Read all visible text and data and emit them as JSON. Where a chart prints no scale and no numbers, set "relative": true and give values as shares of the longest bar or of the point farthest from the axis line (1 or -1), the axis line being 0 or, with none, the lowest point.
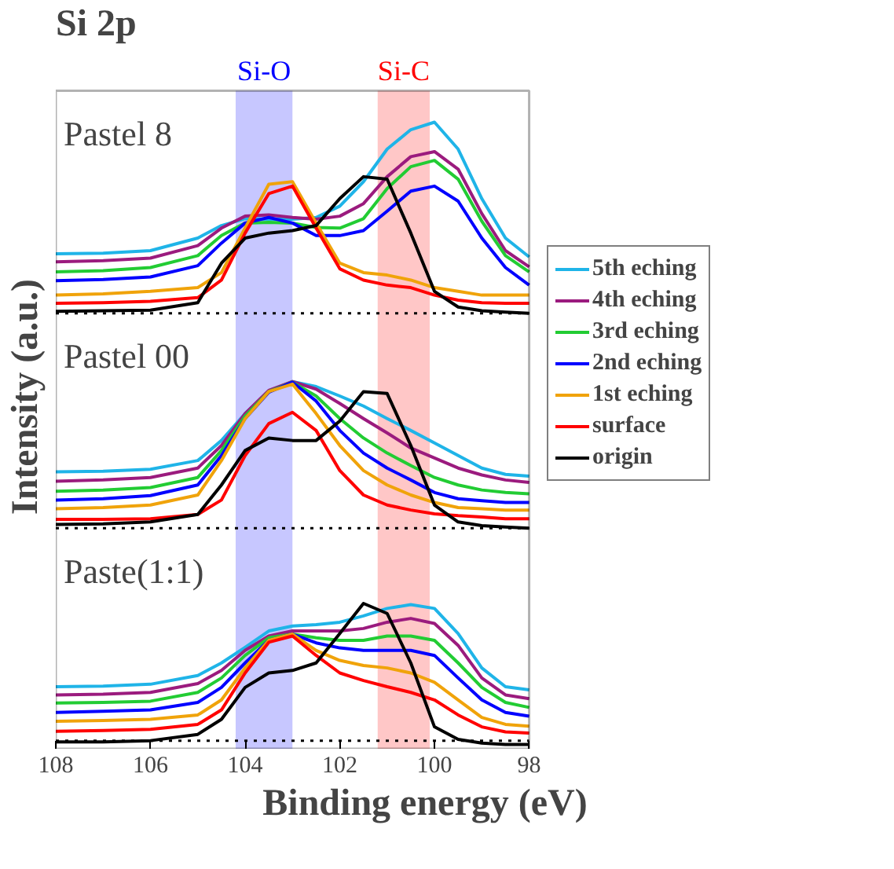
{
  "chart_data": {
    "type": "line",
    "title": "Si 2p",
    "xlabel": "Binding energy (eV)",
    "ylabel": "Intensity (a.u.)",
    "relative": true,
    "grid": false,
    "legend": "right",
    "xlim": [
      108,
      98
    ],
    "xticks": [
      108,
      106,
      104,
      102,
      100,
      98
    ],
    "x": [
      108,
      107,
      106,
      105,
      104.5,
      104,
      103.5,
      103,
      102.5,
      102,
      101.5,
      101,
      100.5,
      100,
      99.5,
      99,
      98.5,
      98
    ],
    "bands": [
      {
        "axis": "x",
        "from": 104.2,
        "to": 103.0,
        "label": "Si-O",
        "color": "#0000ff"
      },
      {
        "axis": "x",
        "from": 101.2,
        "to": 100.1,
        "label": "Si-C",
        "color": "#ff0000"
      }
    ],
    "ref_lines": [
      {
        "axis": "y",
        "value": 0.695,
        "line_style": "dotted",
        "color": "#000000"
      },
      {
        "axis": "y",
        "value": 0.352,
        "line_style": "dotted",
        "color": "#000000"
      },
      {
        "axis": "y",
        "value": 0.013,
        "line_style": "dotted",
        "color": "#000000"
      }
    ],
    "annotations": [
      "Pastel 8",
      "Pastel 00",
      "Paste(1:1)"
    ],
    "series": [
      {
        "name": "5th eching",
        "color": "#1fb4e8",
        "values": [
          0.79,
          0.791,
          0.795,
          0.815,
          0.835,
          0.846,
          0.845,
          0.845,
          0.848,
          0.866,
          0.905,
          0.957,
          0.988,
          1.0,
          0.957,
          0.878,
          0.815,
          0.785
        ]
      },
      {
        "name": "4th eching",
        "color": "#9b1b7e",
        "values": [
          0.777,
          0.779,
          0.783,
          0.803,
          0.831,
          0.85,
          0.852,
          0.848,
          0.845,
          0.85,
          0.87,
          0.913,
          0.945,
          0.953,
          0.925,
          0.854,
          0.795,
          0.769
        ]
      },
      {
        "name": "3rd eching",
        "color": "#22cc33",
        "values": [
          0.761,
          0.763,
          0.768,
          0.787,
          0.819,
          0.839,
          0.84,
          0.839,
          0.832,
          0.831,
          0.846,
          0.894,
          0.929,
          0.939,
          0.909,
          0.842,
          0.787,
          0.761
        ]
      },
      {
        "name": "2nd eching",
        "color": "#0000ff",
        "values": [
          0.747,
          0.749,
          0.753,
          0.771,
          0.807,
          0.839,
          0.848,
          0.839,
          0.819,
          0.819,
          0.827,
          0.858,
          0.89,
          0.898,
          0.874,
          0.815,
          0.768,
          0.74
        ]
      },
      {
        "name": "1st eching",
        "color": "#f0a30a",
        "values": [
          0.724,
          0.726,
          0.73,
          0.736,
          0.76,
          0.831,
          0.901,
          0.905,
          0.839,
          0.775,
          0.76,
          0.756,
          0.748,
          0.736,
          0.73,
          0.724,
          0.724,
          0.724
        ]
      },
      {
        "name": "surface",
        "color": "#ff0000",
        "values": [
          0.711,
          0.712,
          0.714,
          0.72,
          0.748,
          0.823,
          0.886,
          0.898,
          0.831,
          0.766,
          0.748,
          0.74,
          0.736,
          0.724,
          0.716,
          0.712,
          0.711,
          0.711
        ]
      },
      {
        "name": "origin",
        "color": "#000000",
        "values": [
          0.698,
          0.699,
          0.7,
          0.712,
          0.775,
          0.815,
          0.823,
          0.827,
          0.835,
          0.878,
          0.913,
          0.909,
          0.823,
          0.73,
          0.705,
          0.699,
          0.697,
          0.695
        ]
      },
      {
        "color": "#1fb4e8",
        "values": [
          0.442,
          0.443,
          0.446,
          0.46,
          0.492,
          0.535,
          0.57,
          0.586,
          0.578,
          0.563,
          0.547,
          0.527,
          0.508,
          0.488,
          0.468,
          0.448,
          0.438,
          0.435
        ]
      },
      {
        "color": "#9b1b7e",
        "values": [
          0.427,
          0.429,
          0.433,
          0.448,
          0.484,
          0.535,
          0.572,
          0.586,
          0.574,
          0.551,
          0.527,
          0.504,
          0.48,
          0.464,
          0.448,
          0.437,
          0.429,
          0.425
        ]
      },
      {
        "color": "#22cc33",
        "values": [
          0.411,
          0.413,
          0.417,
          0.433,
          0.476,
          0.531,
          0.57,
          0.585,
          0.563,
          0.527,
          0.496,
          0.472,
          0.452,
          0.433,
          0.421,
          0.413,
          0.409,
          0.407
        ]
      },
      {
        "color": "#0000ff",
        "values": [
          0.397,
          0.399,
          0.404,
          0.421,
          0.468,
          0.527,
          0.569,
          0.585,
          0.555,
          0.508,
          0.472,
          0.448,
          0.429,
          0.409,
          0.399,
          0.396,
          0.393,
          0.393
        ]
      },
      {
        "color": "#f0a30a",
        "values": [
          0.383,
          0.385,
          0.389,
          0.405,
          0.46,
          0.527,
          0.57,
          0.582,
          0.535,
          0.484,
          0.444,
          0.421,
          0.405,
          0.393,
          0.385,
          0.383,
          0.381,
          0.381
        ]
      },
      {
        "color": "#ff0000",
        "values": [
          0.366,
          0.366,
          0.367,
          0.374,
          0.397,
          0.468,
          0.519,
          0.537,
          0.508,
          0.444,
          0.405,
          0.389,
          0.381,
          0.375,
          0.372,
          0.37,
          0.367,
          0.367
        ]
      },
      {
        "color": "#000000",
        "values": [
          0.358,
          0.359,
          0.362,
          0.374,
          0.421,
          0.476,
          0.496,
          0.492,
          0.492,
          0.523,
          0.57,
          0.567,
          0.484,
          0.389,
          0.362,
          0.356,
          0.354,
          0.352
        ]
      },
      {
        "color": "#1fb4e8",
        "values": [
          0.099,
          0.1,
          0.103,
          0.117,
          0.137,
          0.162,
          0.188,
          0.196,
          0.198,
          0.202,
          0.212,
          0.224,
          0.23,
          0.224,
          0.184,
          0.129,
          0.099,
          0.094
        ]
      },
      {
        "color": "#9b1b7e",
        "values": [
          0.086,
          0.087,
          0.09,
          0.104,
          0.125,
          0.157,
          0.18,
          0.188,
          0.188,
          0.188,
          0.192,
          0.202,
          0.208,
          0.2,
          0.165,
          0.113,
          0.086,
          0.08
        ]
      },
      {
        "color": "#22cc33",
        "values": [
          0.073,
          0.074,
          0.076,
          0.09,
          0.113,
          0.149,
          0.177,
          0.183,
          0.177,
          0.173,
          0.173,
          0.18,
          0.18,
          0.173,
          0.137,
          0.098,
          0.074,
          0.066
        ]
      },
      {
        "color": "#0000ff",
        "values": [
          0.058,
          0.06,
          0.062,
          0.074,
          0.098,
          0.137,
          0.173,
          0.183,
          0.169,
          0.161,
          0.157,
          0.157,
          0.157,
          0.149,
          0.113,
          0.078,
          0.058,
          0.052
        ]
      },
      {
        "color": "#f0a30a",
        "values": [
          0.044,
          0.045,
          0.047,
          0.054,
          0.078,
          0.129,
          0.173,
          0.183,
          0.157,
          0.141,
          0.133,
          0.129,
          0.121,
          0.106,
          0.078,
          0.05,
          0.039,
          0.036
        ]
      },
      {
        "color": "#ff0000",
        "values": [
          0.028,
          0.029,
          0.031,
          0.039,
          0.062,
          0.121,
          0.17,
          0.18,
          0.149,
          0.121,
          0.109,
          0.099,
          0.09,
          0.078,
          0.054,
          0.035,
          0.027,
          0.025
        ]
      },
      {
        "color": "#000000",
        "values": [
          0.011,
          0.011,
          0.013,
          0.023,
          0.047,
          0.098,
          0.121,
          0.125,
          0.137,
          0.184,
          0.232,
          0.216,
          0.137,
          0.035,
          0.015,
          0.009,
          0.007,
          0.007
        ]
      }
    ]
  }
}
